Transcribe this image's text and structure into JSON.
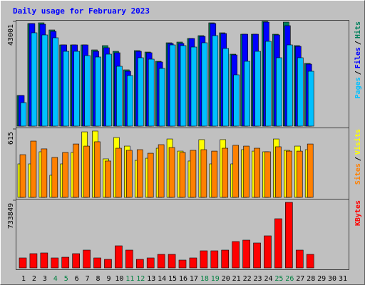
{
  "title": "Daily usage for February 2023",
  "legend_separator": "/",
  "chart_data": [
    {
      "type": "bar",
      "ylim": [
        0,
        43001
      ],
      "yticks": [
        43001
      ],
      "series": [
        {
          "name": "Hits",
          "color": "#00805c",
          "values": [
            12578,
            42120,
            42413,
            39488,
            33345,
            33345,
            33345,
            31298,
            33053,
            30713,
            23108,
            31005,
            30420,
            26618,
            34223,
            34515,
            35978,
            37148,
            42413,
            38318,
            29543,
            37733,
            37733,
            43001,
            37733,
            42705,
            33053,
            25740,
            null,
            null,
            null
          ]
        },
        {
          "name": "Files",
          "color": "#0000ff",
          "values": [
            12578,
            42120,
            41828,
            38903,
            33345,
            33345,
            33345,
            30713,
            32175,
            30128,
            22523,
            30713,
            30128,
            26325,
            33930,
            33930,
            35978,
            36855,
            42120,
            38025,
            29250,
            37733,
            37733,
            42705,
            37440,
            41243,
            32760,
            25448,
            null,
            null,
            null
          ]
        },
        {
          "name": "Pages",
          "color": "#00c0ff",
          "values": [
            9653,
            38318,
            37440,
            36270,
            30713,
            30713,
            28958,
            28373,
            29543,
            24570,
            20768,
            28080,
            27495,
            23693,
            33345,
            33053,
            32468,
            34223,
            37148,
            31883,
            21060,
            26618,
            30713,
            34808,
            28080,
            33345,
            28080,
            22523,
            null,
            null,
            null
          ]
        }
      ]
    },
    {
      "type": "bar",
      "ylim": [
        0,
        615
      ],
      "yticks": [
        615
      ],
      "series": [
        {
          "name": "Visits",
          "color": "#ffff00",
          "values": [
            301,
            301,
            410,
            199,
            301,
            404,
            589,
            596,
            346,
            538,
            461,
            333,
            352,
            442,
            525,
            416,
            327,
            519,
            301,
            519,
            301,
            429,
            416,
            410,
            525,
            423,
            461,
            429,
            null,
            null,
            null
          ]
        },
        {
          "name": "Sites",
          "color": "#ff8000",
          "values": [
            384,
            506,
            436,
            359,
            404,
            480,
            461,
            500,
            327,
            442,
            423,
            429,
            397,
            474,
            448,
            404,
            423,
            429,
            416,
            442,
            468,
            461,
            442,
            410,
            455,
            416,
            416,
            480,
            null,
            null,
            null
          ]
        }
      ]
    },
    {
      "type": "bar",
      "ylim": [
        0,
        733849
      ],
      "yticks": [
        733849
      ],
      "categories": [
        "1",
        "2",
        "3",
        "4",
        "5",
        "6",
        "7",
        "8",
        "9",
        "10",
        "11",
        "12",
        "13",
        "14",
        "15",
        "16",
        "17",
        "18",
        "19",
        "20",
        "21",
        "22",
        "23",
        "24",
        "25",
        "26",
        "27",
        "28",
        "29",
        "30",
        "31"
      ],
      "category_colors": [
        "#000000",
        "#000000",
        "#000000",
        "#008040",
        "#008040",
        "#000000",
        "#000000",
        "#000000",
        "#000000",
        "#000000",
        "#008040",
        "#008040",
        "#000000",
        "#000000",
        "#000000",
        "#000000",
        "#000000",
        "#008040",
        "#008040",
        "#000000",
        "#000000",
        "#000000",
        "#000000",
        "#000000",
        "#008040",
        "#008040",
        "#000000",
        "#000000",
        "#000000",
        "#000000",
        "#000000"
      ],
      "series": [
        {
          "name": "KBytes",
          "color": "#ff0000",
          "values": [
            108150,
            154500,
            162225,
            108150,
            115875,
            154500,
            193125,
            108150,
            92700,
            239475,
            193125,
            92700,
            108150,
            146775,
            146775,
            84975,
            108150,
            185400,
            185400,
            193125,
            285825,
            301275,
            270375,
            347625,
            533025,
            710700,
            193125,
            146775,
            null,
            null,
            null
          ]
        }
      ]
    }
  ]
}
